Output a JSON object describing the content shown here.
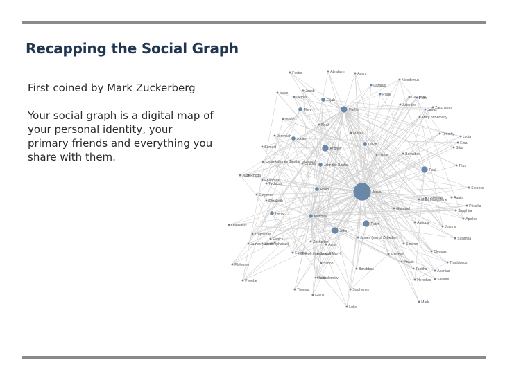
{
  "slide": {
    "title": "Recapping the Social Graph",
    "paragraphs": [
      "First coined by Mark Zuckerberg",
      "Your social graph is a digital map of your personal identity, your primary friends and everything you share with them."
    ]
  },
  "colors": {
    "title": "#1f3550",
    "node": "#6a87a8",
    "edge": "#cfcfcf",
    "rule": "#8a8a8a"
  },
  "graph": {
    "nodes": [
      {
        "id": "Jesus",
        "label": "Jesus",
        "size": "hub"
      },
      {
        "id": "Peter",
        "label": "Peter",
        "size": "large"
      },
      {
        "id": "Andrew",
        "label": "Andrew",
        "size": "large"
      },
      {
        "id": "Martha",
        "label": "Martha",
        "size": "large"
      },
      {
        "id": "Paul",
        "label": "Paul",
        "size": "large"
      },
      {
        "id": "John",
        "label": "John",
        "size": "large"
      },
      {
        "id": "David",
        "label": "David",
        "size": "medium"
      },
      {
        "id": "Judas",
        "label": "Judas",
        "size": "medium"
      },
      {
        "id": "Mary",
        "label": "Mary",
        "size": "medium"
      },
      {
        "id": "Philip",
        "label": "Philip",
        "size": "medium"
      },
      {
        "id": "Matthew",
        "label": "Matthew",
        "size": "medium"
      },
      {
        "id": "Herod",
        "label": "Herod",
        "size": "medium"
      },
      {
        "id": "Elijah",
        "label": "Elijah",
        "size": "medium"
      },
      {
        "id": "JohnBaptist",
        "label": "John the Baptist",
        "size": "medium"
      },
      {
        "id": "Abraham",
        "label": "Abraham",
        "size": "small"
      },
      {
        "id": "Adam",
        "label": "Adam",
        "size": "small"
      },
      {
        "id": "Lazarus",
        "label": "Lazarus",
        "size": "small"
      },
      {
        "id": "Nicodemus",
        "label": "Nicodemus",
        "size": "small"
      },
      {
        "id": "Pilate",
        "label": "Pilate",
        "size": "small"
      },
      {
        "id": "Caiaphas",
        "label": "Caiaphas",
        "size": "small"
      },
      {
        "id": "Zebedee",
        "label": "Zebedee",
        "size": "small"
      },
      {
        "id": "JamesZebedee",
        "label": "James (son of Zebedee)",
        "size": "small"
      },
      {
        "id": "JamesAlphaeus",
        "label": "James (son of Alphaeus)",
        "size": "small"
      },
      {
        "id": "Thomas",
        "label": "Thomas",
        "size": "small"
      },
      {
        "id": "Bartholomew",
        "label": "Bartholomew",
        "size": "small"
      },
      {
        "id": "Simon",
        "label": "Simon",
        "size": "small"
      },
      {
        "id": "Jairus",
        "label": "Jairus",
        "size": "small"
      },
      {
        "id": "Joseph",
        "label": "Joseph",
        "size": "small"
      },
      {
        "id": "Isaac",
        "label": "Isaac",
        "size": "small"
      },
      {
        "id": "Jacob",
        "label": "Jacob",
        "size": "small"
      },
      {
        "id": "Moses",
        "label": "Moses",
        "size": "small"
      },
      {
        "id": "Noah",
        "label": "Noah",
        "size": "small"
      },
      {
        "id": "Isaiah",
        "label": "Isaiah",
        "size": "small"
      },
      {
        "id": "Jeremiah",
        "label": "Jeremiah",
        "size": "small"
      },
      {
        "id": "Daniel",
        "label": "Daniel",
        "size": "small"
      },
      {
        "id": "Samuel",
        "label": "Samuel",
        "size": "small"
      },
      {
        "id": "Solomon",
        "label": "Solomon",
        "size": "small"
      },
      {
        "id": "Barnabas",
        "label": "Barnabas",
        "size": "small"
      },
      {
        "id": "Silas",
        "label": "Silas",
        "size": "small"
      },
      {
        "id": "Timothy",
        "label": "Timothy",
        "size": "small"
      },
      {
        "id": "Titus",
        "label": "Titus",
        "size": "small"
      },
      {
        "id": "Stephen",
        "label": "Stephen",
        "size": "small"
      },
      {
        "id": "Aquila",
        "label": "Aquila",
        "size": "small"
      },
      {
        "id": "Priscilla",
        "label": "Priscilla",
        "size": "small"
      },
      {
        "id": "Apollos",
        "label": "Apollos",
        "size": "small"
      },
      {
        "id": "Cornelius",
        "label": "Cornelius",
        "size": "small"
      },
      {
        "id": "Agrippa",
        "label": "Agrippa",
        "size": "small"
      },
      {
        "id": "Felix",
        "label": "Felix",
        "size": "small"
      },
      {
        "id": "Festus",
        "label": "Festus",
        "size": "small"
      },
      {
        "id": "Gamaliel",
        "label": "Gamaliel",
        "size": "small"
      },
      {
        "id": "MaryMagdalene",
        "label": "Mary Magdalene",
        "size": "small"
      },
      {
        "id": "MaryBethany",
        "label": "Mary of Bethany",
        "size": "small"
      },
      {
        "id": "Zacchaeus",
        "label": "Zacchaeus",
        "size": "small"
      },
      {
        "id": "Elizabeth",
        "label": "Elizabeth",
        "size": "small"
      },
      {
        "id": "Zechariah",
        "label": "Zechariah",
        "size": "small"
      },
      {
        "id": "Anna",
        "label": "Anna",
        "size": "small"
      },
      {
        "id": "Simeon",
        "label": "Simeon",
        "size": "small"
      },
      {
        "id": "Barabbas",
        "label": "Barabbas",
        "size": "small"
      },
      {
        "id": "Malchus",
        "label": "Malchus",
        "size": "small"
      },
      {
        "id": "Annas",
        "label": "Annas",
        "size": "small"
      },
      {
        "id": "Herodias",
        "label": "Herodias",
        "size": "small"
      },
      {
        "id": "Salome",
        "label": "Salome",
        "size": "small"
      },
      {
        "id": "Joanna",
        "label": "Joanna",
        "size": "small"
      },
      {
        "id": "Susanna",
        "label": "Susanna",
        "size": "small"
      },
      {
        "id": "Cleopas",
        "label": "Cleopas",
        "size": "small"
      },
      {
        "id": "Thaddaeus",
        "label": "Thaddaeus",
        "size": "small"
      },
      {
        "id": "Ananias",
        "label": "Ananias",
        "size": "small"
      },
      {
        "id": "Sapphira",
        "label": "Sapphira",
        "size": "small"
      },
      {
        "id": "Lydia",
        "label": "Lydia",
        "size": "small"
      },
      {
        "id": "Tabitha",
        "label": "Tabitha",
        "size": "small"
      },
      {
        "id": "Mark",
        "label": "Mark",
        "size": "small"
      },
      {
        "id": "Luke",
        "label": "Luke",
        "size": "small"
      },
      {
        "id": "Rhoda",
        "label": "Rhoda",
        "size": "small"
      },
      {
        "id": "Eutychus",
        "label": "Eutychus",
        "size": "small"
      },
      {
        "id": "Demas",
        "label": "Demas",
        "size": "small"
      },
      {
        "id": "Onesimus",
        "label": "Onesimus",
        "size": "small"
      },
      {
        "id": "Philemon",
        "label": "Philemon",
        "size": "small"
      },
      {
        "id": "Phoebe",
        "label": "Phoebe",
        "size": "small"
      },
      {
        "id": "Epaphras",
        "label": "Epaphras",
        "size": "small"
      },
      {
        "id": "Tychicus",
        "label": "Tychicus",
        "size": "small"
      },
      {
        "id": "Trophimus",
        "label": "Trophimus",
        "size": "small"
      },
      {
        "id": "Erastus",
        "label": "Erastus",
        "size": "small"
      },
      {
        "id": "Gaius",
        "label": "Gaius",
        "size": "small"
      },
      {
        "id": "Sosthenes",
        "label": "Sosthenes",
        "size": "small"
      },
      {
        "id": "Crispus",
        "label": "Crispus",
        "size": "small"
      },
      {
        "id": "Jason",
        "label": "Jason",
        "size": "small"
      },
      {
        "id": "Eunice",
        "label": "Eunice",
        "size": "small"
      },
      {
        "id": "Lois",
        "label": "Lois",
        "size": "small"
      },
      {
        "id": "Joseph2",
        "label": "Joseph (husband of Mary)",
        "size": "small"
      },
      {
        "id": "James",
        "label": "James (brother of Jesus)",
        "size": "small"
      },
      {
        "id": "Jude",
        "label": "Jude",
        "size": "small"
      },
      {
        "id": "Ezra",
        "label": "Ezra",
        "size": "small"
      }
    ],
    "edges": []
  }
}
